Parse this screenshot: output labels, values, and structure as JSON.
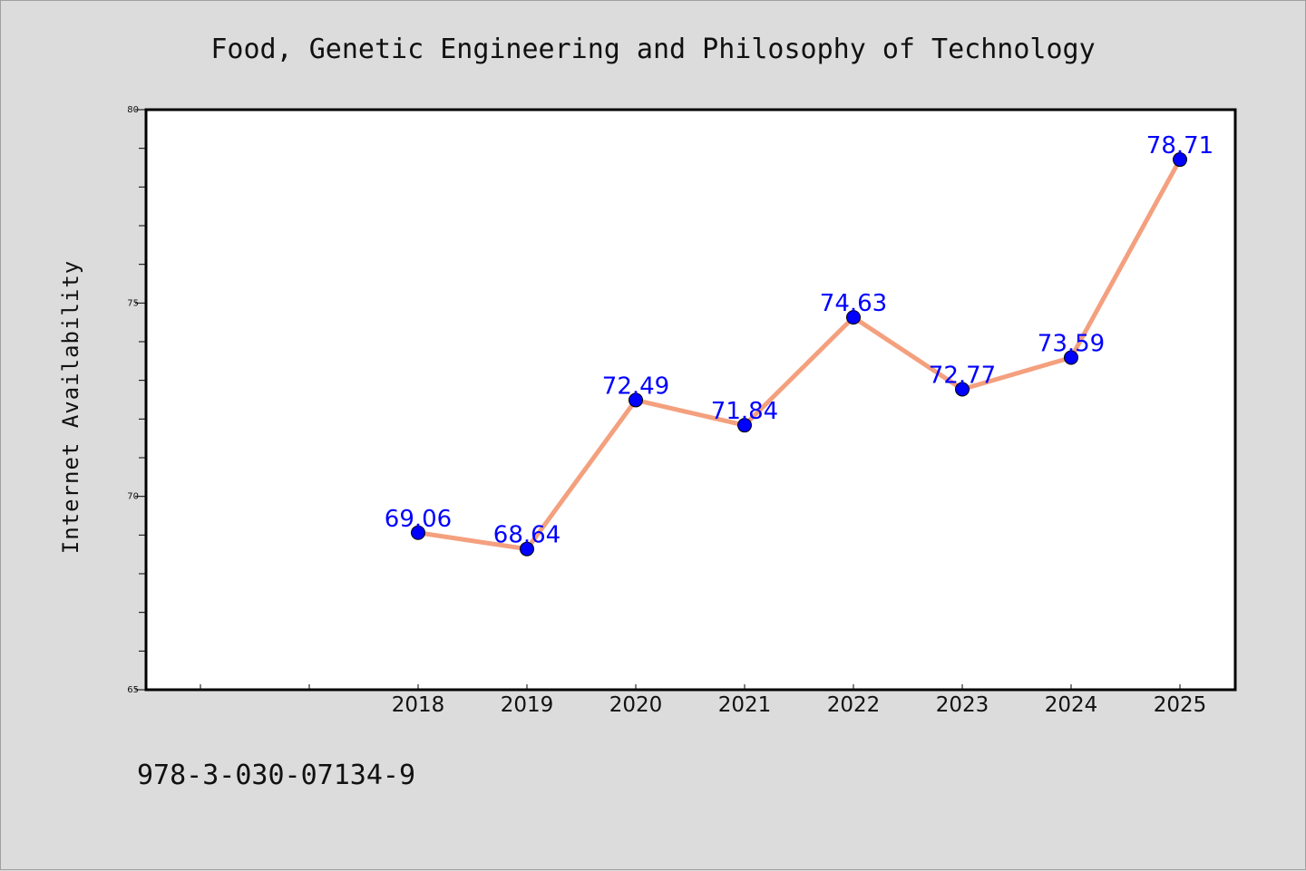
{
  "chart_data": {
    "type": "line",
    "title": "Food, Genetic Engineering and Philosophy of Technology",
    "xlabel": "",
    "ylabel": "Internet Availability",
    "categories": [
      "2018",
      "2019",
      "2020",
      "2021",
      "2022",
      "2023",
      "2024",
      "2025"
    ],
    "x_slots_before_data": 2,
    "values": [
      69.06,
      68.64,
      72.49,
      71.84,
      74.63,
      72.77,
      73.59,
      78.71
    ],
    "data_labels": [
      "69.06",
      "68.64",
      "72.49",
      "71.84",
      "74.63",
      "72.77",
      "73.59",
      "78.71"
    ],
    "ylim": [
      65,
      80
    ],
    "yticks": [
      65,
      70,
      75,
      80
    ],
    "yminor_step": 1,
    "grid": false,
    "legend": "none",
    "colors": {
      "line": "#f4a07e",
      "marker": "#0000ff",
      "labels": "#0000ff",
      "background": "#dcdcdc",
      "plot_area": "#ffffff"
    }
  },
  "footer_text": "978-3-030-07134-9"
}
